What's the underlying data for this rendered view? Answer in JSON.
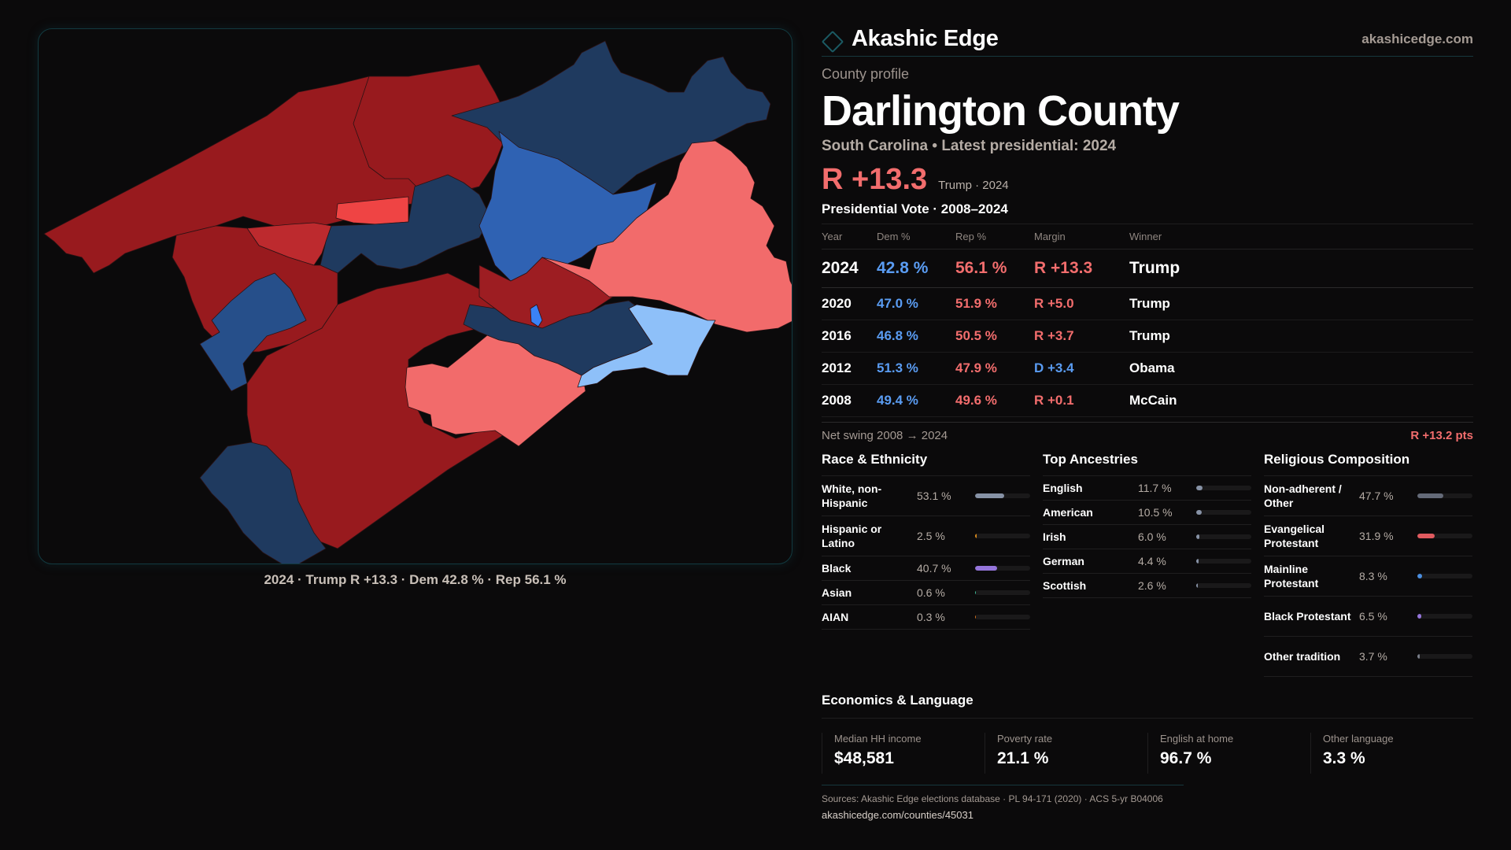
{
  "brand": {
    "name": "Akashic Edge",
    "icon": "diamond-icon",
    "site": "akashicedge.com"
  },
  "colors": {
    "accent": "#1b5a63",
    "rep": "#f26d6d",
    "dem": "#5a9cf2",
    "rep_strong": "#981a1e",
    "rep_medium": "#bd2a2e",
    "rep_light": "#f26b6b",
    "dem_strong": "#1f3a5f",
    "dem_medium": "#2f62b3",
    "dem_light": "#8ec0f9"
  },
  "profile": {
    "eyebrow": "County profile",
    "title": "Darlington County",
    "subtitle": "South Carolina • Latest presidential: 2024",
    "headline_margin": "R +13.3",
    "headline_meta": "Trump · 2024"
  },
  "map": {
    "caption": "2024 · Trump R +13.3 · Dem 42.8 % · Rep 56.1 %"
  },
  "votes": {
    "title": "Presidential Vote · 2008–2024",
    "headers": [
      "Year",
      "Dem %",
      "Rep %",
      "Margin",
      "Winner"
    ],
    "rows": [
      {
        "year": "2024",
        "dem": "42.8 %",
        "rep": "56.1 %",
        "margin": "R +13.3",
        "party": "R",
        "winner": "Trump"
      },
      {
        "year": "2020",
        "dem": "47.0 %",
        "rep": "51.9 %",
        "margin": "R +5.0",
        "party": "R",
        "winner": "Trump"
      },
      {
        "year": "2016",
        "dem": "46.8 %",
        "rep": "50.5 %",
        "margin": "R +3.7",
        "party": "R",
        "winner": "Trump"
      },
      {
        "year": "2012",
        "dem": "51.3 %",
        "rep": "47.9 %",
        "margin": "D +3.4",
        "party": "D",
        "winner": "Obama"
      },
      {
        "year": "2008",
        "dem": "49.4 %",
        "rep": "49.6 %",
        "margin": "R +0.1",
        "party": "R",
        "winner": "McCain"
      }
    ],
    "swing_label": "Net swing 2008 → 2024",
    "swing_value": "R +13.2 pts"
  },
  "race": {
    "title": "Race & Ethnicity",
    "items": [
      {
        "label": "White, non-Hispanic",
        "value": "53.1 %",
        "pct": 53.1,
        "color": "#8792a6"
      },
      {
        "label": "Hispanic or Latino",
        "value": "2.5 %",
        "pct": 2.5,
        "color": "#d98a1c"
      },
      {
        "label": "Black",
        "value": "40.7 %",
        "pct": 40.7,
        "color": "#9575db"
      },
      {
        "label": "Asian",
        "value": "0.6 %",
        "pct": 0.6,
        "color": "#3fbf9a"
      },
      {
        "label": "AIAN",
        "value": "0.3 %",
        "pct": 0.3,
        "color": "#d9731c"
      }
    ]
  },
  "ancestry": {
    "title": "Top Ancestries",
    "items": [
      {
        "label": "English",
        "value": "11.7 %",
        "pct": 11.7,
        "color": "#8792a6"
      },
      {
        "label": "American",
        "value": "10.5 %",
        "pct": 10.5,
        "color": "#8792a6"
      },
      {
        "label": "Irish",
        "value": "6.0 %",
        "pct": 6.0,
        "color": "#8792a6"
      },
      {
        "label": "German",
        "value": "4.4 %",
        "pct": 4.4,
        "color": "#8792a6"
      },
      {
        "label": "Scottish",
        "value": "2.6 %",
        "pct": 2.6,
        "color": "#8792a6"
      }
    ]
  },
  "religion": {
    "title": "Religious Composition",
    "items": [
      {
        "label": "Non-adherent / Other",
        "value": "47.7 %",
        "pct": 47.7,
        "color": "#646a78"
      },
      {
        "label": "Evangelical Protestant",
        "value": "31.9 %",
        "pct": 31.9,
        "color": "#e05a5f"
      },
      {
        "label": "Mainline Protestant",
        "value": "8.3 %",
        "pct": 8.3,
        "color": "#4a8ee0"
      },
      {
        "label": "Black Protestant",
        "value": "6.5 %",
        "pct": 6.5,
        "color": "#9575db"
      },
      {
        "label": "Other tradition",
        "value": "3.7 %",
        "pct": 3.7,
        "color": "#7a7f8a"
      }
    ]
  },
  "economics": {
    "title": "Economics & Language",
    "items": [
      {
        "label": "Median HH income",
        "value": "$48,581"
      },
      {
        "label": "Poverty rate",
        "value": "21.1 %"
      },
      {
        "label": "English at home",
        "value": "96.7 %"
      },
      {
        "label": "Other language",
        "value": "3.3 %"
      }
    ]
  },
  "sources": {
    "text": "Sources: Akashic Edge elections database · PL 94-171 (2020) · ACS 5-yr B04006",
    "link": "akashicedge.com/counties/45031"
  }
}
